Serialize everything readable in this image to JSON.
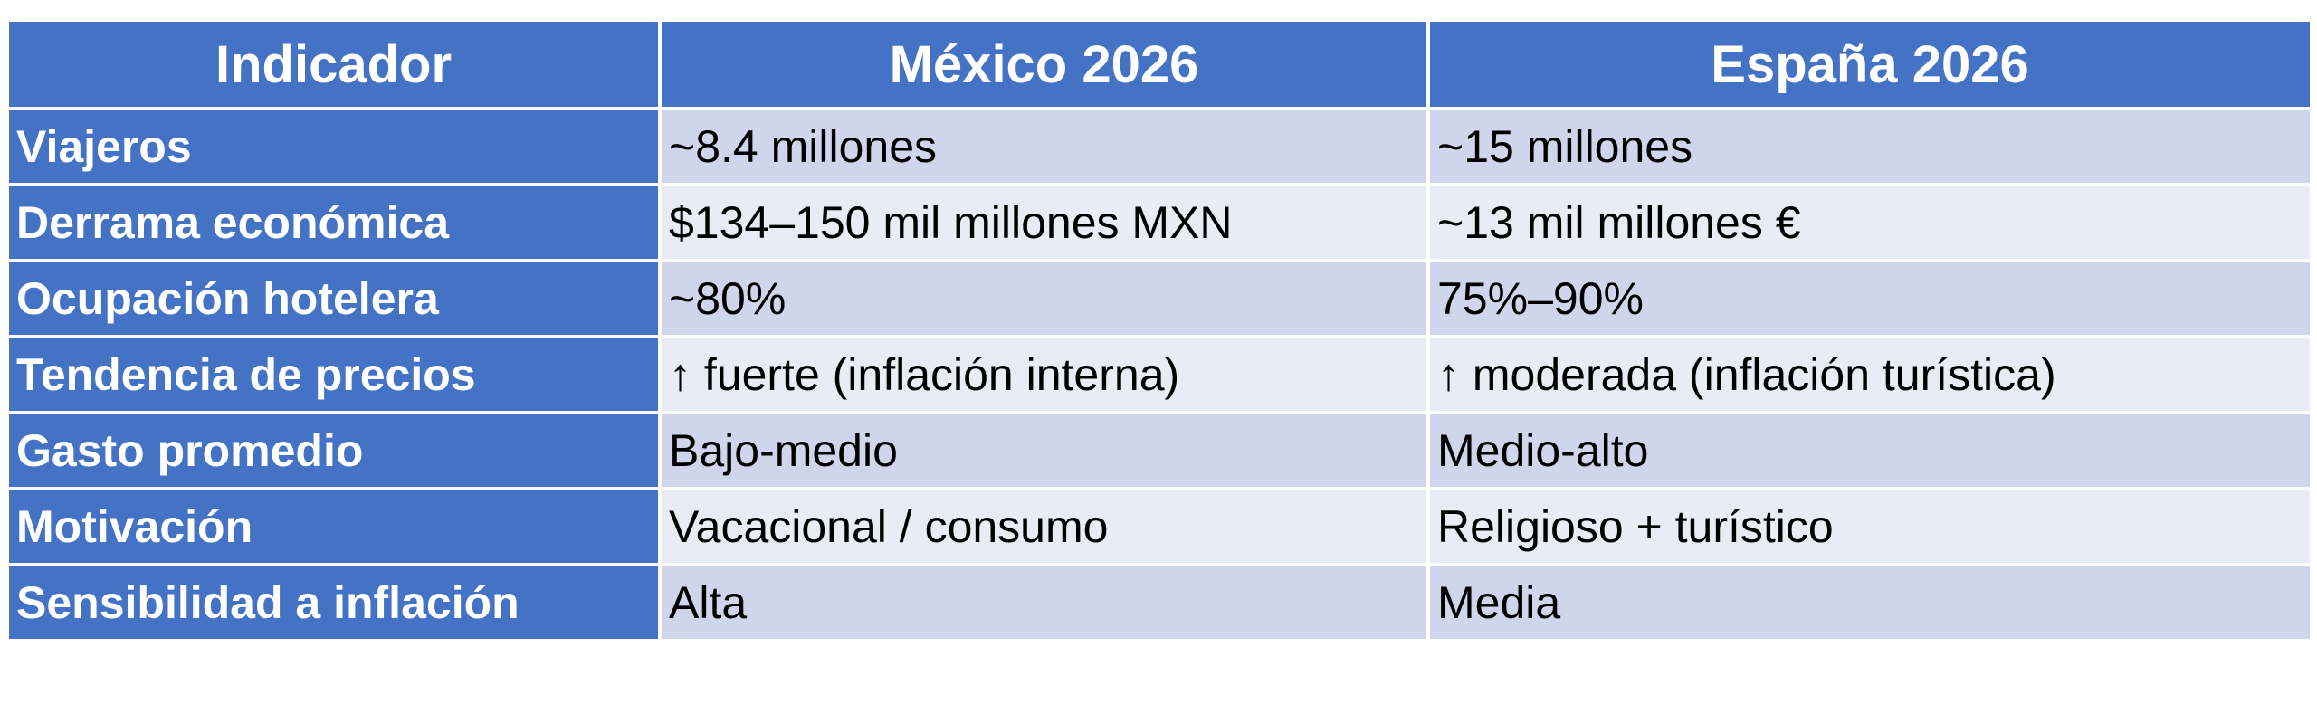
{
  "colors": {
    "header": "#4472C4",
    "row_odd": "#CFD5EA",
    "row_even": "#E9EBF5"
  },
  "headers": [
    "Indicador",
    "México 2026",
    "España 2026"
  ],
  "rows": [
    [
      "Viajeros",
      "~8.4 millones",
      "~15 millones"
    ],
    [
      "Derrama económica",
      "$134–150 mil millones MXN",
      "~13 mil millones €"
    ],
    [
      "Ocupación hotelera",
      "~80%",
      "75%–90%"
    ],
    [
      "Tendencia de precios",
      "↑ fuerte (inflación interna)",
      "↑ moderada (inflación turística)"
    ],
    [
      "Gasto promedio",
      "Bajo-medio",
      "Medio-alto"
    ],
    [
      "Motivación",
      "Vacacional / consumo",
      "Religioso + turístico"
    ],
    [
      "Sensibilidad a inflación",
      "Alta",
      "Media"
    ]
  ]
}
